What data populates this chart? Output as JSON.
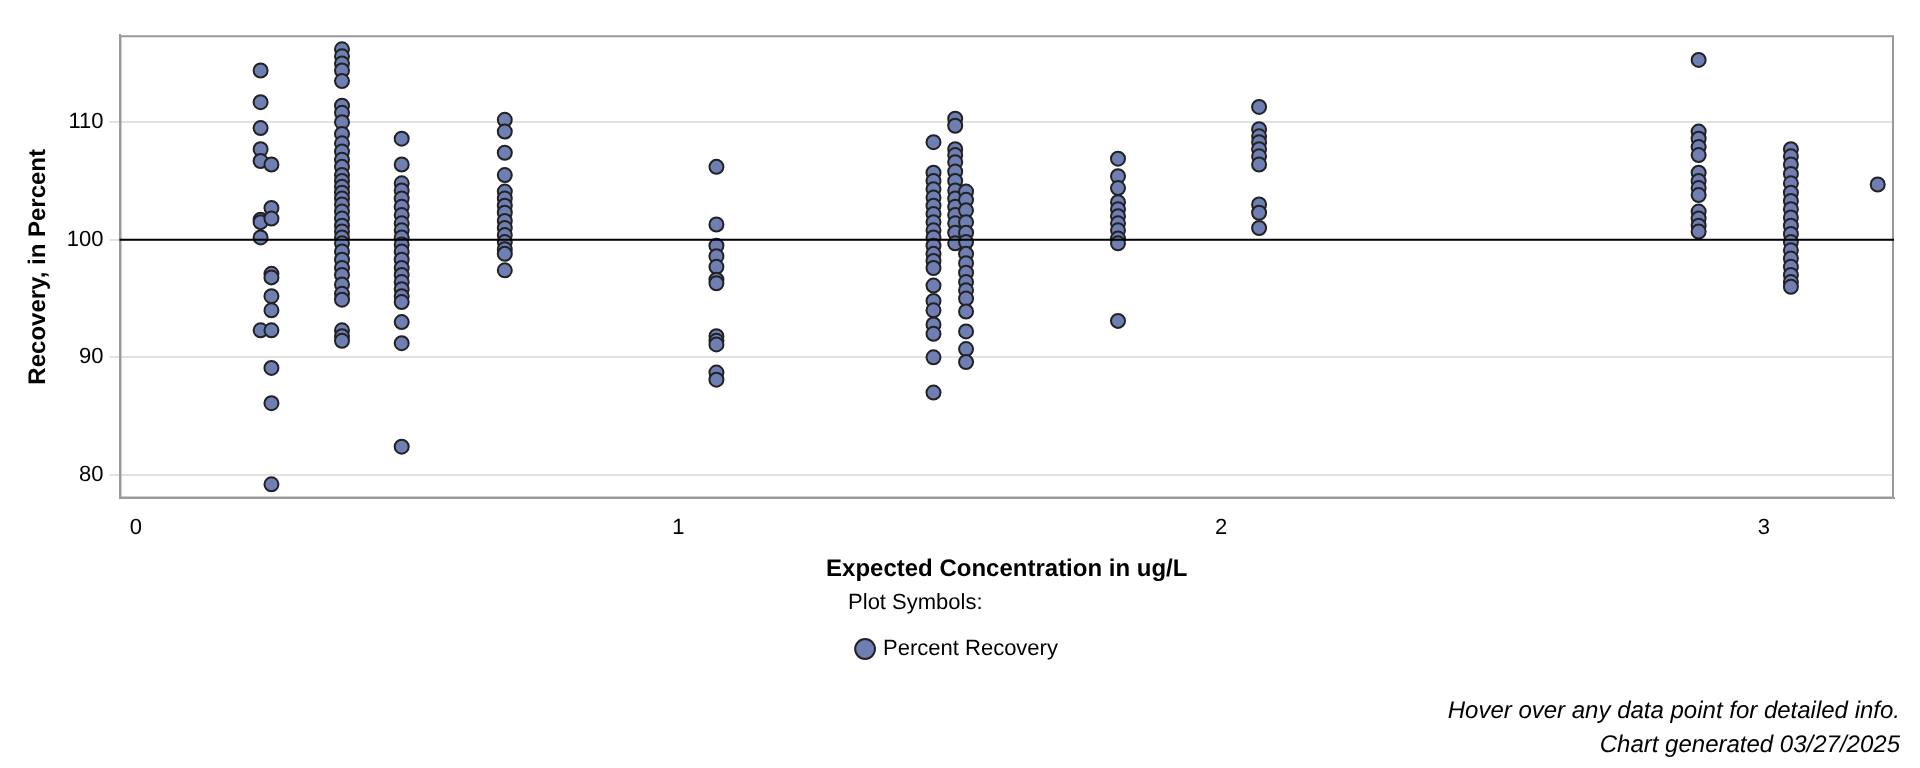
{
  "chart_data": {
    "type": "scatter",
    "xlabel": "Expected Concentration in ug/L",
    "ylabel": "Recovery, in Percent",
    "xlim": [
      -0.03,
      3.24
    ],
    "xticks": [
      0,
      1,
      2,
      3
    ],
    "ylim": [
      78,
      117.4
    ],
    "yticks": [
      80,
      90,
      100,
      110
    ],
    "grid": "y",
    "marker": "circle",
    "legend": "bottom",
    "legend_title": "Plot Symbols:",
    "ref_lines": [
      {
        "axis": "y",
        "value": 100,
        "color": "#000000"
      }
    ],
    "annotations": [
      "Hover over any data point for detailed info.",
      "Chart generated 03/27/2025"
    ],
    "series": [
      {
        "name": "Percent Recovery",
        "color": "#6f7eb3",
        "x": [
          0.23,
          0.23,
          0.23,
          0.23,
          0.23,
          0.23,
          0.23,
          0.23,
          0.23,
          0.25,
          0.25,
          0.25,
          0.25,
          0.25,
          0.25,
          0.25,
          0.25,
          0.25,
          0.25,
          0.25,
          0.38,
          0.38,
          0.38,
          0.38,
          0.38,
          0.38,
          0.38,
          0.38,
          0.38,
          0.38,
          0.38,
          0.38,
          0.38,
          0.38,
          0.38,
          0.38,
          0.38,
          0.38,
          0.38,
          0.38,
          0.38,
          0.38,
          0.38,
          0.38,
          0.38,
          0.38,
          0.38,
          0.38,
          0.38,
          0.38,
          0.38,
          0.38,
          0.38,
          0.38,
          0.38,
          0.49,
          0.49,
          0.49,
          0.49,
          0.49,
          0.49,
          0.49,
          0.49,
          0.49,
          0.49,
          0.49,
          0.49,
          0.49,
          0.49,
          0.49,
          0.49,
          0.49,
          0.49,
          0.49,
          0.49,
          0.49,
          0.49,
          0.68,
          0.68,
          0.68,
          0.68,
          0.68,
          0.68,
          0.68,
          0.68,
          0.68,
          0.68,
          0.68,
          0.68,
          0.68,
          0.68,
          0.68,
          1.07,
          1.07,
          1.07,
          1.07,
          1.07,
          1.07,
          1.07,
          1.07,
          1.07,
          1.07,
          1.07,
          1.07,
          1.47,
          1.47,
          1.47,
          1.47,
          1.47,
          1.47,
          1.47,
          1.47,
          1.47,
          1.47,
          1.47,
          1.47,
          1.47,
          1.47,
          1.47,
          1.47,
          1.47,
          1.47,
          1.47,
          1.47,
          1.47,
          1.51,
          1.51,
          1.51,
          1.51,
          1.51,
          1.51,
          1.51,
          1.51,
          1.51,
          1.51,
          1.51,
          1.51,
          1.51,
          1.51,
          1.53,
          1.53,
          1.53,
          1.53,
          1.53,
          1.53,
          1.53,
          1.53,
          1.53,
          1.53,
          1.53,
          1.53,
          1.53,
          1.53,
          1.53,
          1.53,
          1.81,
          1.81,
          1.81,
          1.81,
          1.81,
          1.81,
          1.81,
          1.81,
          1.81,
          1.81,
          1.81,
          2.07,
          2.07,
          2.07,
          2.07,
          2.07,
          2.07,
          2.07,
          2.07,
          2.07,
          2.07,
          2.88,
          2.88,
          2.88,
          2.88,
          2.88,
          2.88,
          2.88,
          2.88,
          2.88,
          2.88,
          2.88,
          2.88,
          2.88,
          3.05,
          3.05,
          3.05,
          3.05,
          3.05,
          3.05,
          3.05,
          3.05,
          3.05,
          3.05,
          3.05,
          3.05,
          3.05,
          3.05,
          3.05,
          3.05,
          3.05,
          3.05,
          3.21
        ],
        "values": [
          114.4,
          111.7,
          109.5,
          107.7,
          106.7,
          101.7,
          101.5,
          100.2,
          92.3,
          106.4,
          102.7,
          101.8,
          97.1,
          96.8,
          95.2,
          94.0,
          92.3,
          89.1,
          86.1,
          79.2,
          116.2,
          115.6,
          115.0,
          114.4,
          113.5,
          111.4,
          110.8,
          110.0,
          109.0,
          108.2,
          107.5,
          106.8,
          106.2,
          105.5,
          105.0,
          104.5,
          104.0,
          103.5,
          103.0,
          102.4,
          101.8,
          101.2,
          100.7,
          100.2,
          99.7,
          99.0,
          98.3,
          97.6,
          97.0,
          96.2,
          95.4,
          94.9,
          92.3,
          91.8,
          91.4,
          108.6,
          106.4,
          104.8,
          104.2,
          103.5,
          102.8,
          102.1,
          101.4,
          100.8,
          100.2,
          99.6,
          99.0,
          98.3,
          97.6,
          97.0,
          96.4,
          95.8,
          95.2,
          94.7,
          93.0,
          91.2,
          82.4,
          110.2,
          109.2,
          107.4,
          105.5,
          104.1,
          103.5,
          102.9,
          102.3,
          101.6,
          101.0,
          100.4,
          99.8,
          99.2,
          98.8,
          97.4,
          106.2,
          101.3,
          99.5,
          98.6,
          97.7,
          96.6,
          96.3,
          91.8,
          91.4,
          91.1,
          88.7,
          88.1,
          108.3,
          105.7,
          105.0,
          104.3,
          103.6,
          102.9,
          102.2,
          101.5,
          100.8,
          100.2,
          99.5,
          98.8,
          98.2,
          97.6,
          96.1,
          94.8,
          94.0,
          92.8,
          92.0,
          90.0,
          87.0,
          110.3,
          109.7,
          107.7,
          107.2,
          106.6,
          105.8,
          105.0,
          104.2,
          103.5,
          102.8,
          102.1,
          101.4,
          100.6,
          99.7,
          104.1,
          103.4,
          102.5,
          101.5,
          100.6,
          99.8,
          98.8,
          98.0,
          97.2,
          96.4,
          95.7,
          95.0,
          93.9,
          92.2,
          90.7,
          89.6,
          106.9,
          105.4,
          104.4,
          103.2,
          102.6,
          102.0,
          101.4,
          100.8,
          100.1,
          99.7,
          93.1,
          111.3,
          109.4,
          108.8,
          108.3,
          107.7,
          107.1,
          106.4,
          103.0,
          102.3,
          101.0,
          115.3,
          109.2,
          108.6,
          107.9,
          107.2,
          105.7,
          105.0,
          104.4,
          103.8,
          102.4,
          101.8,
          101.2,
          100.7,
          107.7,
          107.1,
          106.4,
          105.6,
          104.8,
          104.0,
          103.3,
          102.6,
          101.9,
          101.2,
          100.5,
          99.8,
          99.1,
          98.4,
          97.7,
          97.0,
          96.4,
          96.0,
          104.7
        ]
      }
    ]
  }
}
